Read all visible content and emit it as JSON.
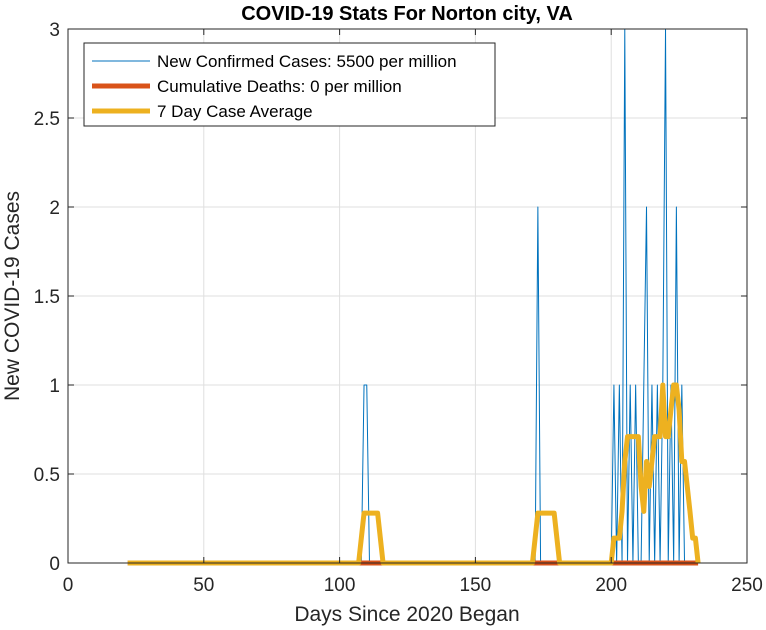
{
  "chart_data": {
    "type": "line",
    "title": "COVID-19 Stats For Norton city, VA",
    "xlabel": "Days Since 2020 Began",
    "ylabel": "New COVID-19 Cases",
    "xlim": [
      0,
      250
    ],
    "ylim": [
      0,
      3
    ],
    "xticks": [
      0,
      50,
      100,
      150,
      200,
      250
    ],
    "yticks": [
      0,
      0.5,
      1,
      1.5,
      2,
      2.5,
      3
    ],
    "xtick_labels": [
      "0",
      "50",
      "100",
      "150",
      "200",
      "250"
    ],
    "ytick_labels": [
      "0",
      "0.5",
      "1",
      "1.5",
      "2",
      "2.5",
      "3"
    ],
    "grid": true,
    "legend_location": "top-left",
    "series": [
      {
        "name": "New Confirmed Cases: 5500 per million",
        "color": "#0072BD",
        "style": "thin",
        "x": [
          22,
          108,
          109,
          110,
          111,
          172,
          173,
          174,
          200,
          201,
          202,
          203,
          204,
          205,
          206,
          207,
          208,
          209,
          210,
          211,
          212,
          213,
          214,
          215,
          216,
          217,
          218,
          219,
          220,
          221,
          222,
          223,
          224,
          225,
          226,
          227,
          228,
          229,
          230,
          231,
          232
        ],
        "y": [
          0,
          0,
          1,
          1,
          0,
          0,
          2,
          0,
          0,
          1,
          0,
          1,
          0,
          3,
          0,
          1,
          0,
          1,
          0,
          0,
          1,
          2,
          0,
          1,
          0,
          1,
          0,
          1,
          3,
          0,
          1,
          0,
          2,
          0,
          1,
          0,
          0,
          0,
          0,
          0,
          0
        ]
      },
      {
        "name": "Cumulative Deaths: 0 per million",
        "color": "#D95319",
        "style": "thick",
        "x": [
          22,
          232
        ],
        "y": [
          0,
          0
        ]
      },
      {
        "name": "7 Day Case Average",
        "color": "#EDB120",
        "style": "thick",
        "x": [
          22,
          107,
          108,
          109,
          110,
          111,
          112,
          113,
          114,
          115,
          116,
          117,
          171,
          172,
          173,
          174,
          175,
          176,
          177,
          178,
          179,
          180,
          181,
          200,
          201,
          202,
          203,
          204,
          205,
          206,
          207,
          208,
          209,
          210,
          211,
          212,
          213,
          214,
          215,
          216,
          217,
          218,
          219,
          220,
          221,
          222,
          223,
          224,
          225,
          226,
          227,
          228,
          229,
          230,
          231,
          232
        ],
        "y": [
          0,
          0,
          0.14,
          0.28,
          0.28,
          0.28,
          0.28,
          0.28,
          0.28,
          0.14,
          0,
          0,
          0,
          0.14,
          0.28,
          0.28,
          0.28,
          0.28,
          0.28,
          0.28,
          0.28,
          0.14,
          0,
          0,
          0.14,
          0.14,
          0.14,
          0.29,
          0.57,
          0.71,
          0.71,
          0.71,
          0.71,
          0.71,
          0.43,
          0.29,
          0.57,
          0.43,
          0.57,
          0.71,
          0.71,
          0.71,
          1,
          0.71,
          0.71,
          0.86,
          1,
          1,
          0.86,
          0.57,
          0.57,
          0.43,
          0.29,
          0.14,
          0.14,
          0
        ]
      }
    ]
  }
}
